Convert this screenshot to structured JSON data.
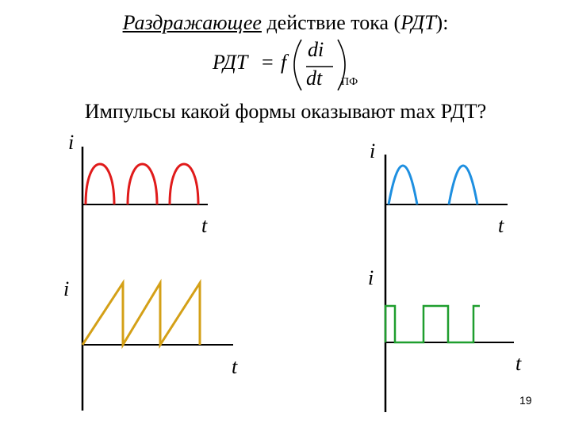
{
  "title": {
    "italic_part": "Раздражающее",
    "rest": " действие тока (",
    "italic_abbr": "РДТ",
    "end": "):"
  },
  "formula": {
    "lhs": "РДТ",
    "equals": "=",
    "func": "f",
    "numerator": "di",
    "denominator": "dt",
    "subscript": "ПФ"
  },
  "question": "Импульсы какой формы оказывают max РДТ?",
  "graphs": [
    {
      "shape": "half-sine pulses",
      "color": "#e01b1b",
      "y_label": "i",
      "x_label": "t",
      "pulses": 3
    },
    {
      "shape": "triangular pulses",
      "color": "#1e8fe0",
      "y_label": "i",
      "x_label": "t",
      "pulses": 2
    },
    {
      "shape": "sawtooth pulses",
      "color": "#d4a017",
      "y_label": "i",
      "x_label": "t",
      "pulses": 3
    },
    {
      "shape": "rectangular pulses",
      "color": "#1f9e2e",
      "y_label": "i",
      "x_label": "t",
      "pulses": 3
    }
  ],
  "slide_number": "19"
}
